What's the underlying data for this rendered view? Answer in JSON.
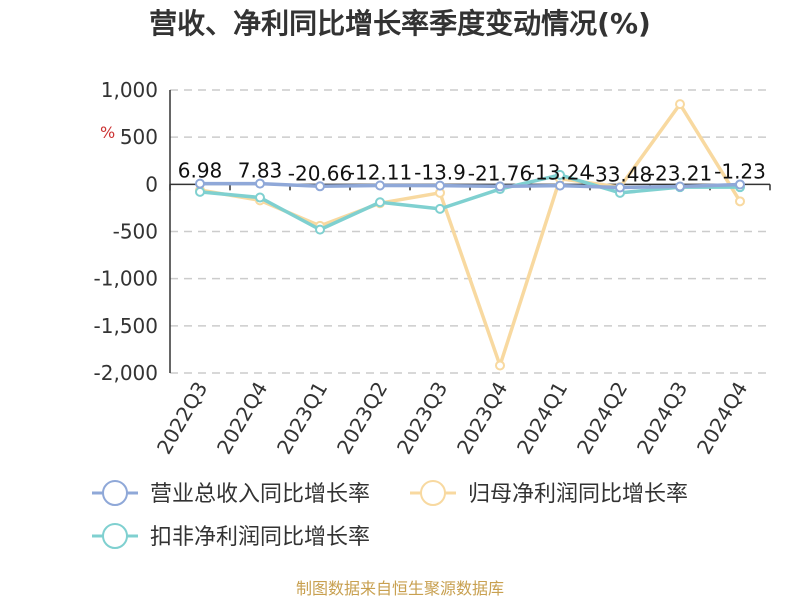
{
  "chart_data": {
    "type": "line",
    "title": "营收、净利同比增长率季度变动情况(%)",
    "unit": "%",
    "categories": [
      "2022Q3",
      "2022Q4",
      "2023Q1",
      "2023Q2",
      "2023Q3",
      "2023Q4",
      "2024Q1",
      "2024Q2",
      "2024Q3",
      "2024Q4"
    ],
    "ylim": [
      -2000,
      1000
    ],
    "yticks": [
      1000,
      500,
      0,
      -500,
      -1000,
      -1500,
      -2000
    ],
    "ytick_labels": [
      "1,000",
      "500",
      "0",
      "-500",
      "-1,000",
      "-1,500",
      "-2,000"
    ],
    "grid": true,
    "legend_position": "bottom",
    "series": [
      {
        "name": "营业总收入同比增长率",
        "color": "#8fa8d8",
        "values": [
          6.98,
          7.83,
          -20.66,
          -12.11,
          -13.9,
          -21.76,
          -13.24,
          -33.48,
          -23.21,
          -1.23
        ],
        "labels": [
          "6.98",
          "7.83",
          "-20.66",
          "-12.11",
          "-13.9",
          "-21.76",
          "-13.24",
          "-33.48",
          "-23.21",
          "-1.23"
        ]
      },
      {
        "name": "归母净利润同比增长率",
        "color": "#f8d9a0",
        "values": [
          -60,
          -170,
          -440,
          -200,
          -90,
          -1920,
          60,
          -30,
          850,
          -180
        ]
      },
      {
        "name": "扣非净利润同比增长率",
        "color": "#7fd0d0",
        "values": [
          -80,
          -140,
          -480,
          -190,
          -260,
          -50,
          100,
          -90,
          -30,
          -30
        ]
      }
    ]
  },
  "source": "制图数据来自恒生聚源数据库"
}
